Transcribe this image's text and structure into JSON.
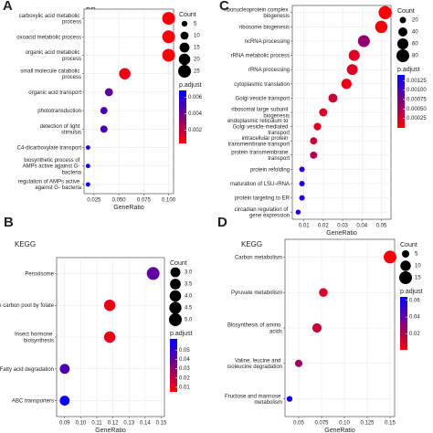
{
  "chart_data": [
    {
      "type": "dot",
      "panel_label": "A",
      "title": "BP",
      "xlabel": "GeneRatio",
      "categories": [
        "carboxylic acid metabolic process",
        "oxoacid metabolic process",
        "organic acid metabolic process",
        "small molecule catabolic process",
        "organic acid transport",
        "phototransduction",
        "detection of light stimulus",
        "C4-dicarboxylate transport",
        "biosynthetic process of AMPs active against G- bacteria",
        "regulation of AMPs active against G- bacteria"
      ],
      "values": [
        0.1,
        0.1,
        0.1,
        0.056,
        0.04,
        0.035,
        0.035,
        0.019,
        0.019,
        0.019
      ],
      "sizes": [
        25,
        25,
        25,
        20,
        10,
        8,
        8,
        3,
        3,
        3
      ],
      "p_adjust": [
        0.0005,
        0.0005,
        0.0005,
        0.001,
        0.0045,
        0.005,
        0.005,
        0.006,
        0.0065,
        0.0065
      ],
      "xlim": [
        0.015,
        0.105
      ],
      "xticks": [
        0.025,
        {
          "value": 0.05,
          "label": "0.050"
        },
        0.075,
        {
          "value": 0.1,
          "label": "0.100"
        }
      ],
      "size_title": "Count",
      "size_ticks": [
        5,
        10,
        15,
        20,
        25
      ],
      "color_title": "p.adjust",
      "color_ticks": [
        0.002,
        0.004,
        0.006
      ],
      "clim": [
        0.0004,
        0.0068
      ],
      "colors": {
        "low": "#ff0000",
        "high": "#0000ff"
      },
      "grid": true
    },
    {
      "type": "dot",
      "panel_label": "C",
      "xlabel": "GeneRatio",
      "categories": [
        "ribonucleoprotein complex biogenesis",
        "ribosome biogenesis",
        "ncRNA processing",
        "rRNA metabolic process",
        "rRNA processing",
        "cytoplasmic translation",
        "Golgi vesicle transport",
        "ribosomal large subunit biogenesis",
        "endoplasmic reticulum to Golgi vesicle-mediated transport",
        "intracellular protein transmembrane transport",
        "protein transmembrane transport",
        "protein refolding",
        "maturation of LSU-rRNA",
        "protein targeting to ER",
        "circadian regulation of gene expression"
      ],
      "values": [
        0.052,
        0.05,
        0.041,
        0.036,
        0.035,
        0.032,
        0.025,
        0.02,
        0.017,
        0.015,
        0.015,
        0.009,
        0.009,
        0.009,
        0.007
      ],
      "sizes": [
        85,
        75,
        70,
        60,
        58,
        52,
        40,
        33,
        28,
        25,
        25,
        15,
        15,
        15,
        12
      ],
      "p_adjust": [
        2e-05,
        5e-05,
        0.0006,
        0.0002,
        0.0002,
        0.0001,
        0.0003,
        0.0002,
        0.0002,
        0.0003,
        0.0004,
        0.0011,
        0.0012,
        0.0012,
        0.0013
      ],
      "xlim": [
        0.004,
        0.055
      ],
      "xticks": [
        0.01,
        0.02,
        0.03,
        0.04,
        0.05
      ],
      "size_title": "Count",
      "size_ticks": [
        20,
        40,
        60,
        80
      ],
      "color_title": "p.adjust",
      "color_ticks": [
        0.00025,
        {
          "value": 0.0005,
          "label": "0.00050"
        },
        0.00075,
        {
          "value": 0.001,
          "label": "0.00100"
        },
        0.00125
      ],
      "clim": [
        0.0,
        0.0014
      ],
      "colors": {
        "low": "#ff0000",
        "high": "#0000ff"
      },
      "grid": true
    },
    {
      "type": "dot",
      "panel_label": "B",
      "title": "KEGG",
      "xlabel": "GeneRatio",
      "categories": [
        "Peroxisome",
        "One carbon pool by folate",
        "Insect hormone biosynthesis",
        "Fatty acid degradation",
        "ABC transporters"
      ],
      "values": [
        0.145,
        0.118,
        0.118,
        0.09,
        0.09
      ],
      "sizes": [
        5,
        4,
        4,
        3,
        3
      ],
      "p_adjust": [
        0.04,
        0.01,
        0.01,
        0.045,
        0.06
      ],
      "xlim": [
        0.085,
        0.152
      ],
      "xticks": [
        0.09,
        {
          "value": 0.1,
          "label": "0.10"
        },
        0.11,
        0.12,
        0.13,
        0.14,
        0.15
      ],
      "size_title": "Count",
      "size_ticks": [
        {
          "value": 3,
          "label": "3.0"
        },
        3.5,
        {
          "value": 4,
          "label": "4.0"
        },
        4.5,
        {
          "value": 5,
          "label": "5.0"
        }
      ],
      "color_title": "p.adjust",
      "color_ticks": [
        0.01,
        0.02,
        0.03,
        0.04,
        0.05
      ],
      "clim": [
        0.005,
        0.062
      ],
      "colors": {
        "low": "#ff0000",
        "high": "#0000ff"
      },
      "grid": true
    },
    {
      "type": "dot",
      "panel_label": "D",
      "title": "KEGG",
      "xlabel": "GeneRatio",
      "categories": [
        "Carbon metabolism",
        "Pyruvate metabolism",
        "Biosynthesis of amino acids",
        "Valine, leucine and isoleucine degradation",
        "Fructose and mannose metabolism"
      ],
      "values": [
        0.15,
        0.077,
        0.07,
        0.05,
        0.04
      ],
      "sizes": [
        15,
        7,
        8,
        5,
        3
      ],
      "p_adjust": [
        0.003,
        0.01,
        0.015,
        0.025,
        0.06
      ],
      "xlim": [
        0.035,
        0.155
      ],
      "xticks": [
        0.05,
        0.075,
        {
          "value": 0.1,
          "label": "0.10"
        },
        0.125,
        0.15
      ],
      "size_title": "Count",
      "size_ticks": [
        5,
        10,
        15
      ],
      "color_title": "p.adjust",
      "color_ticks": [
        0.02,
        0.04,
        0.06
      ],
      "clim": [
        0.001,
        0.064
      ],
      "colors": {
        "low": "#ff0000",
        "high": "#0000ff"
      },
      "grid": true
    }
  ]
}
